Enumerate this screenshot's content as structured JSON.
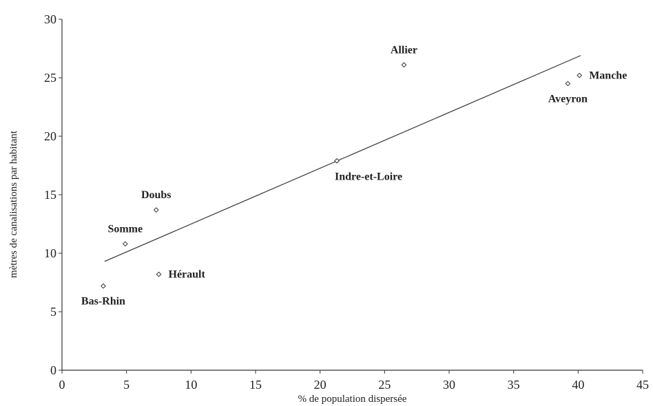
{
  "chart_data": {
    "type": "scatter",
    "title": "",
    "xlabel": "% de population dispersée",
    "ylabel": "mètres de canalisations par habitant",
    "xlim": [
      0,
      45
    ],
    "ylim": [
      0,
      30
    ],
    "x_ticks": [
      0,
      5,
      10,
      15,
      20,
      25,
      30,
      35,
      40,
      45
    ],
    "y_ticks": [
      0,
      5,
      10,
      15,
      20,
      25,
      30
    ],
    "grid": false,
    "legend": "none",
    "points": [
      {
        "label": "Allier",
        "x": 26.5,
        "y": 26.1,
        "label_pos": "above"
      },
      {
        "label": "Manche",
        "x": 40.1,
        "y": 25.2,
        "label_pos": "right"
      },
      {
        "label": "Aveyron",
        "x": 39.2,
        "y": 24.5,
        "label_pos": "below"
      },
      {
        "label": "Indre-et-Loire",
        "x": 21.3,
        "y": 17.9,
        "label_pos": "below-right"
      },
      {
        "label": "Doubs",
        "x": 7.3,
        "y": 13.7,
        "label_pos": "above"
      },
      {
        "label": "Somme",
        "x": 4.9,
        "y": 10.8,
        "label_pos": "above"
      },
      {
        "label": "Hérault",
        "x": 7.5,
        "y": 8.2,
        "label_pos": "right"
      },
      {
        "label": "Bas-Rhin",
        "x": 3.2,
        "y": 7.2,
        "label_pos": "below"
      }
    ],
    "trendline": {
      "x": [
        3.3,
        40.2
      ],
      "y": [
        9.3,
        26.9
      ]
    },
    "colors": {
      "axis": "#333333",
      "line": "#444444",
      "marker_fill": "#ffffff"
    }
  }
}
